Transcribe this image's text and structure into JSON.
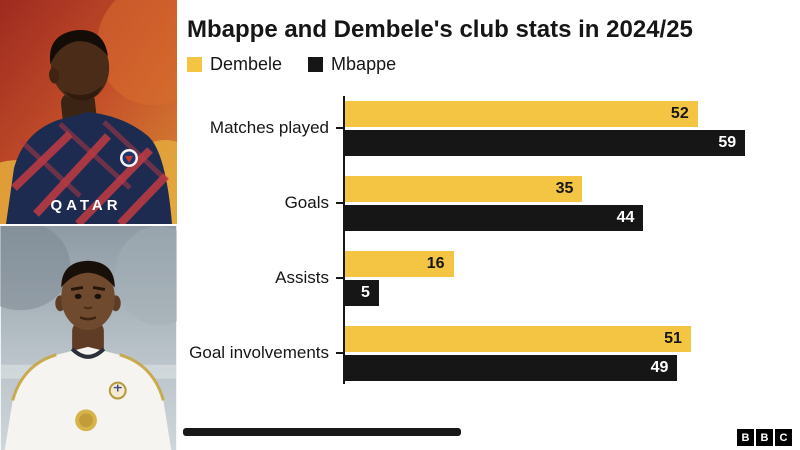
{
  "chart_data": {
    "type": "bar",
    "orientation": "horizontal",
    "title": "Mbappe and Dembele's club stats in 2024/25",
    "categories": [
      "Matches played",
      "Goals",
      "Assists",
      "Goal involvements"
    ],
    "series": [
      {
        "name": "Dembele",
        "color": "#F4C542",
        "values": [
          52,
          35,
          16,
          51
        ]
      },
      {
        "name": "Mbappe",
        "color": "#161616",
        "values": [
          59,
          44,
          5,
          49
        ]
      }
    ],
    "xlabel": "",
    "ylabel": "",
    "xlim": [
      0,
      60
    ],
    "grid": false,
    "legend_position": "top",
    "value_labels": "inside-end"
  },
  "photos": {
    "dembele": {
      "jersey_text": "QATAR"
    },
    "mbappe": {
      "jersey_text": ""
    }
  },
  "footer": {
    "logo_letters": [
      "B",
      "B",
      "C"
    ]
  }
}
